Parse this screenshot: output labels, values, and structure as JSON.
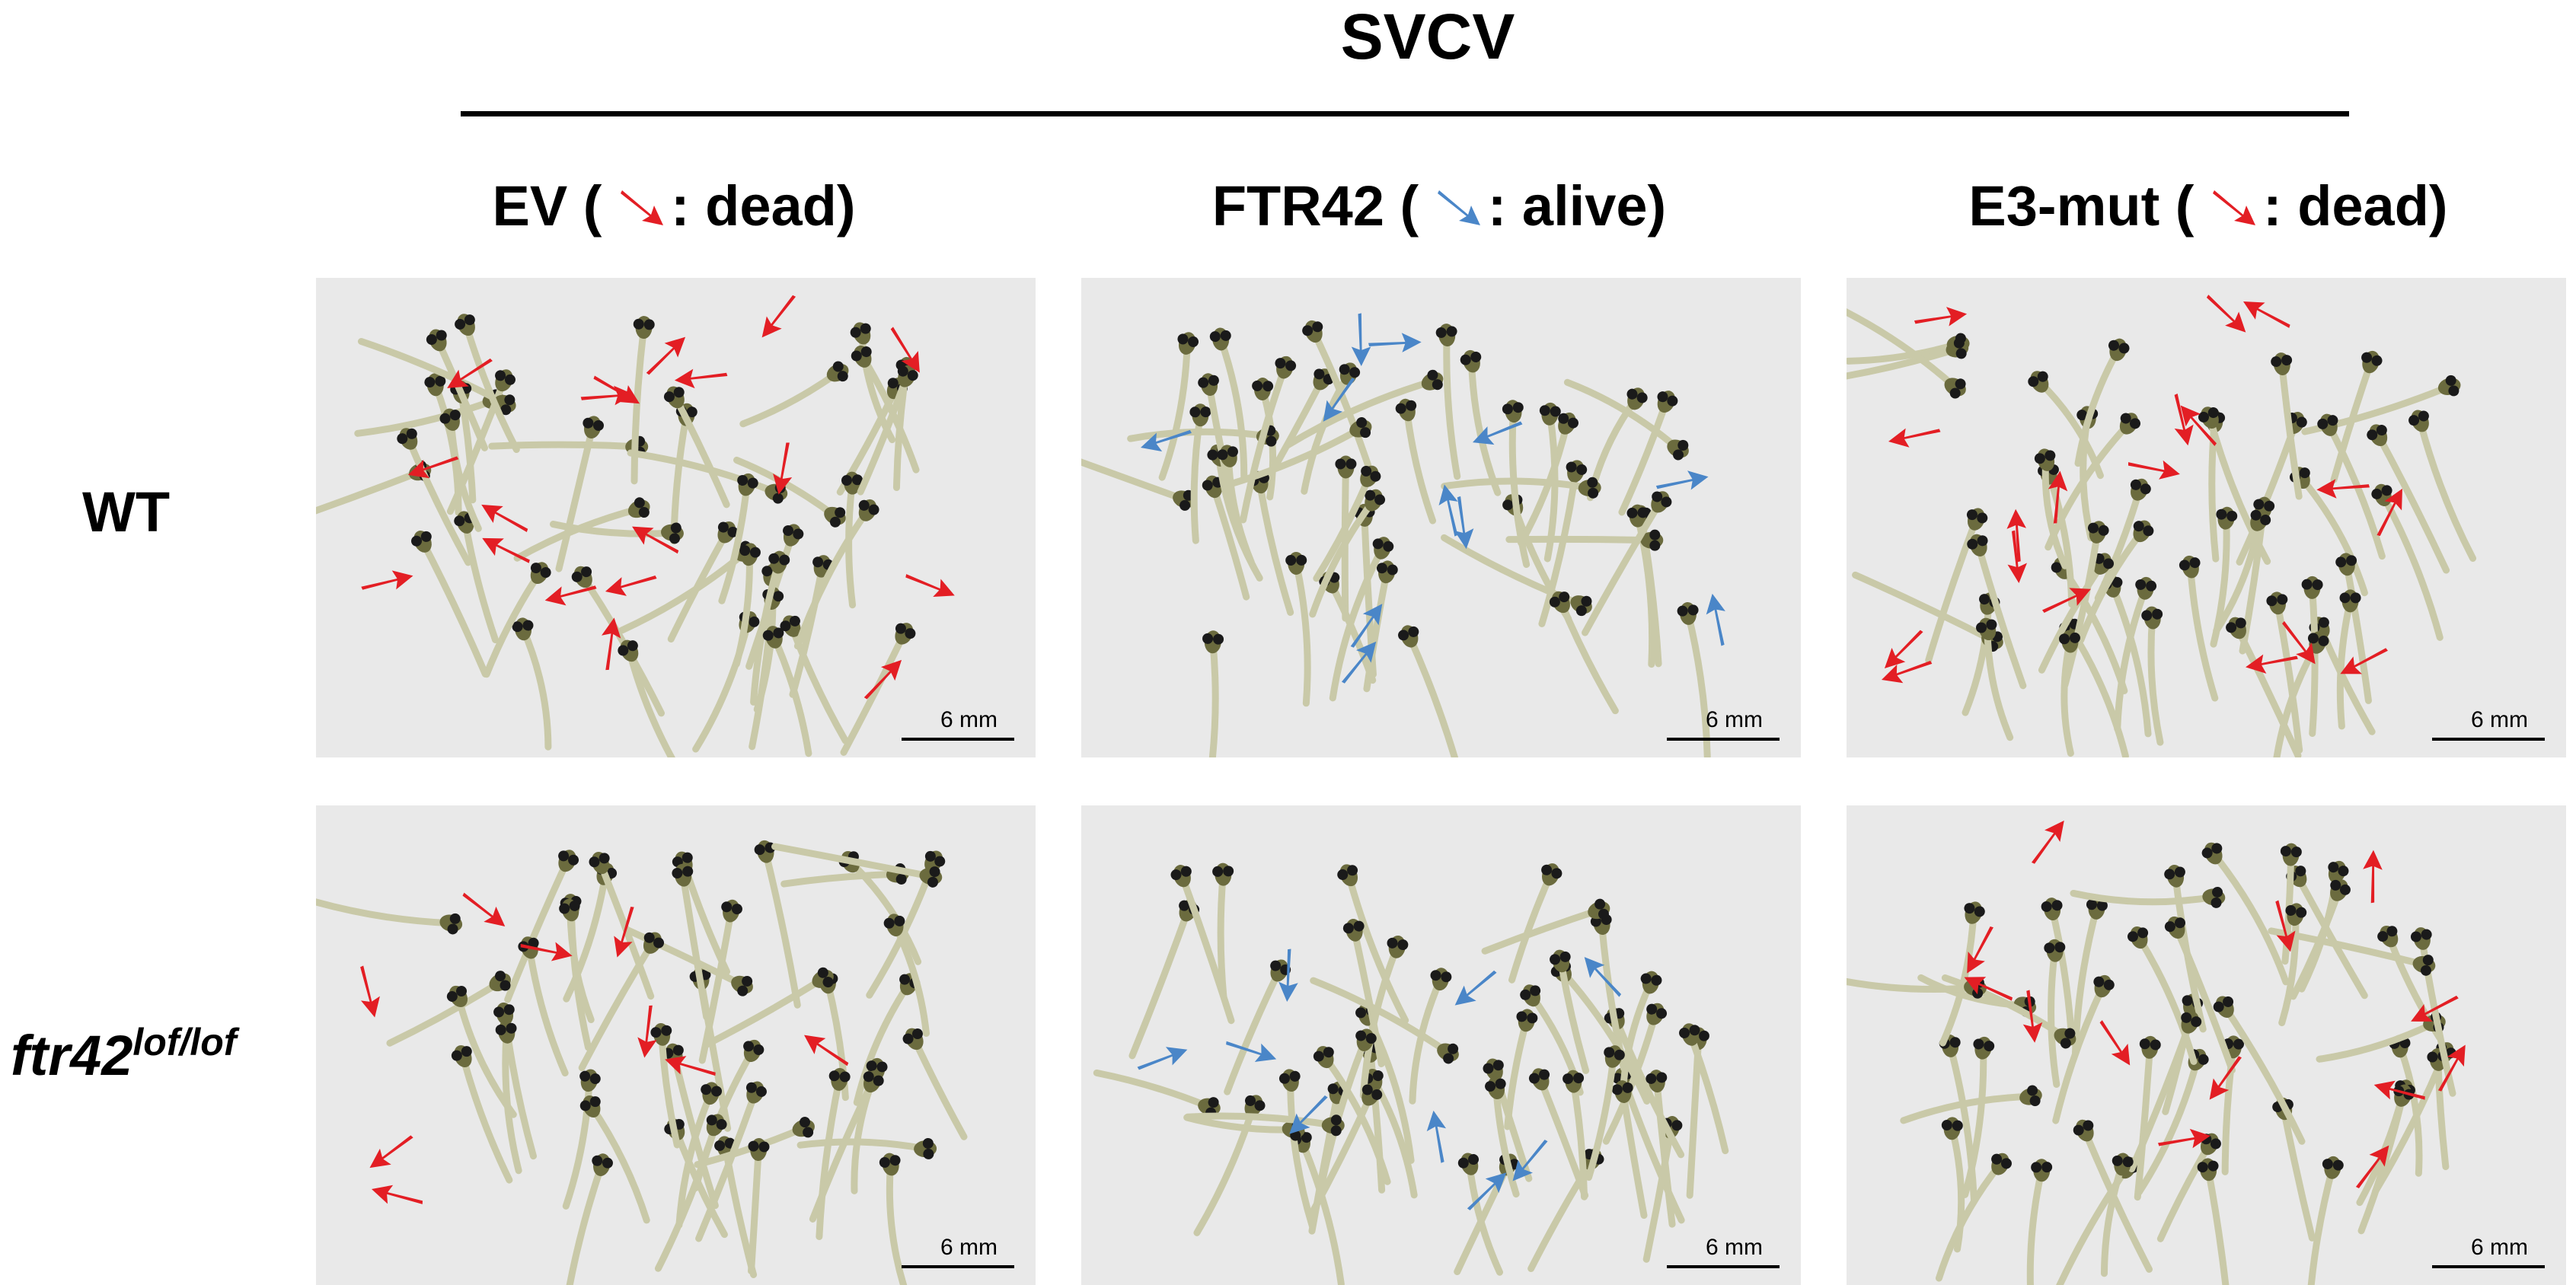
{
  "figure": {
    "virus_label": "SVCV",
    "columns": [
      {
        "label": "EV",
        "legend_text": ": dead",
        "arrow_color": "#e31e24"
      },
      {
        "label": "FTR42",
        "legend_text": ": alive",
        "arrow_color": "#4a86c8"
      },
      {
        "label": "E3-mut",
        "legend_text": ": dead",
        "arrow_color": "#e31e24"
      }
    ],
    "rows": [
      {
        "label": "WT"
      },
      {
        "label_main": "ftr42",
        "label_sup": "lof/lof"
      }
    ],
    "scale_bar_label": "6 mm",
    "colors": {
      "dead_arrow": "#e31e24",
      "alive_arrow": "#4a86c8",
      "background": "#e9e9e9",
      "larva_body": "#c9c9a8",
      "larva_eye": "#1a1a1a"
    }
  }
}
